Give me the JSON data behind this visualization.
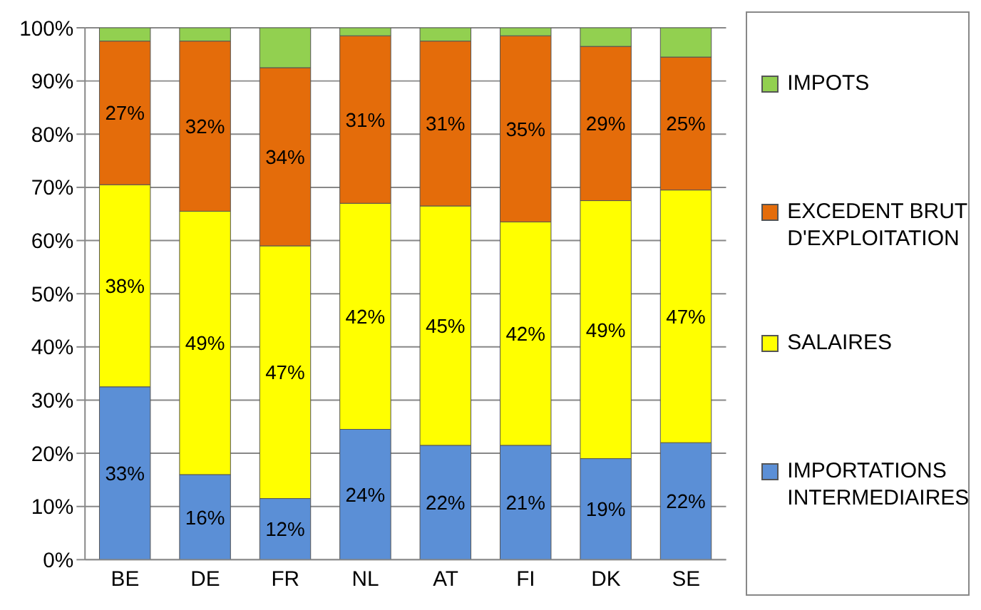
{
  "chart_data": {
    "type": "bar",
    "stacked": true,
    "categories": [
      "BE",
      "DE",
      "FR",
      "NL",
      "AT",
      "FI",
      "DK",
      "SE"
    ],
    "series": [
      {
        "name": "IMPORTATIONS INTERMEDIAIRES",
        "color": "#5b8fd6",
        "values": [
          32.5,
          16,
          11.5,
          24.5,
          21.5,
          21.5,
          19,
          22
        ],
        "value_labels": [
          "33%",
          "16%",
          "12%",
          "24%",
          "22%",
          "21%",
          "19%",
          "22%"
        ]
      },
      {
        "name": "SALAIRES",
        "color": "#ffff00",
        "values": [
          38,
          49.5,
          47.5,
          42.5,
          45,
          42,
          48.5,
          47.5
        ],
        "value_labels": [
          "38%",
          "49%",
          "47%",
          "42%",
          "45%",
          "42%",
          "49%",
          "47%"
        ]
      },
      {
        "name": "EXCEDENT BRUT D'EXPLOITATION",
        "color": "#e46c0a",
        "values": [
          27,
          32,
          33.5,
          31.5,
          31,
          35,
          29,
          25
        ],
        "value_labels": [
          "27%",
          "32%",
          "34%",
          "31%",
          "31%",
          "35%",
          "29%",
          "25%"
        ]
      },
      {
        "name": "IMPOTS",
        "color": "#92d050",
        "values": [
          2.5,
          2.5,
          7.5,
          1.5,
          2.5,
          1.5,
          3.5,
          5.5
        ]
      }
    ],
    "ylim": [
      0,
      100
    ],
    "yticks": [
      {
        "value": 0,
        "label": "0%"
      },
      {
        "value": 10,
        "label": "10%"
      },
      {
        "value": 20,
        "label": "20%"
      },
      {
        "value": 30,
        "label": "30%"
      },
      {
        "value": 40,
        "label": "40%"
      },
      {
        "value": 50,
        "label": "50%"
      },
      {
        "value": 60,
        "label": "60%"
      },
      {
        "value": 70,
        "label": "70%"
      },
      {
        "value": 80,
        "label": "80%"
      },
      {
        "value": 90,
        "label": "90%"
      },
      {
        "value": 100,
        "label": "100%"
      }
    ],
    "grid": "y",
    "legend": "right"
  }
}
